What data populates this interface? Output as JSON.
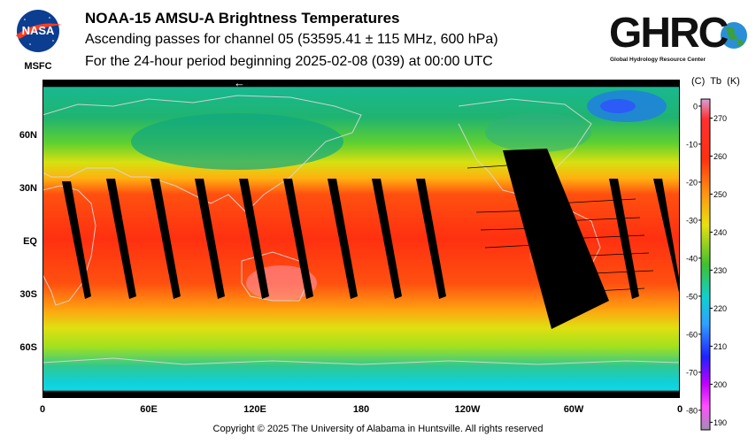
{
  "header": {
    "nasa_label": "MSFC",
    "title": "NOAA-15 AMSU-A Brightness Temperatures",
    "subtitle": "Ascending passes for channel 05 (53595.41 ± 115 MHz, 600 hPa)",
    "period": "For the 24-hour period beginning 2025-02-08 (039) at 00:00 UTC",
    "ghrc_logo_text": "GHRC",
    "ghrc_tagline": "Global Hydrology Resource Center"
  },
  "map": {
    "scan_arrow": "←",
    "lat_labels": [
      "60N",
      "30N",
      "EQ",
      "30S",
      "60S"
    ],
    "lon_labels": [
      "0",
      "60E",
      "120E",
      "180",
      "120W",
      "60W",
      "0"
    ],
    "colors": {
      "polar_cold": "#10d0d8",
      "mid": "#e8e010",
      "tropics": "#ff3010",
      "swath_gap": "#000000",
      "coast": "#d8d8d8"
    }
  },
  "colorbar": {
    "header_celsius": "(C)",
    "header_tb": "Tb",
    "header_kelvin": "(K)",
    "celsius_ticks": [
      "0",
      "-10",
      "-20",
      "-30",
      "-40",
      "-50",
      "-60",
      "-70",
      "-80"
    ],
    "kelvin_ticks": [
      "270",
      "260",
      "250",
      "240",
      "230",
      "220",
      "210",
      "200",
      "190"
    ],
    "celsius_values": [
      0,
      -10,
      -20,
      -30,
      -40,
      -50,
      -60,
      -70,
      -80
    ],
    "kelvin_values": [
      270,
      260,
      250,
      240,
      230,
      220,
      210,
      200,
      190
    ],
    "range_kelvin": [
      188,
      275
    ]
  },
  "footer": {
    "copyright": "Copyright © 2025 The University of Alabama in Huntsville.  All rights reserved"
  }
}
